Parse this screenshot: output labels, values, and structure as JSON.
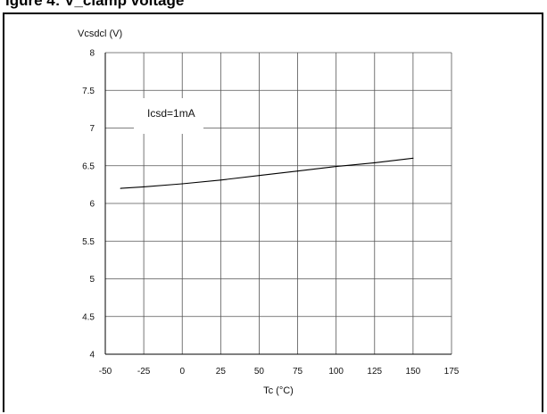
{
  "header": {
    "title": "igure 4: V_clamp voltage"
  },
  "chart_data": {
    "type": "line",
    "title": "",
    "xlabel": "Tc (°C)",
    "ylabel": "Vcsdcl (V)",
    "xlim": [
      -50,
      175
    ],
    "ylim": [
      4,
      8
    ],
    "xticks": [
      -50,
      -25,
      0,
      25,
      50,
      75,
      100,
      125,
      150,
      175
    ],
    "yticks": [
      4,
      4.5,
      5,
      5.5,
      6,
      6.5,
      7,
      7.5,
      8
    ],
    "xtick_labels": [
      "-50",
      "-25",
      "0",
      "25",
      "50",
      "75",
      "100",
      "125",
      "150",
      "175"
    ],
    "ytick_labels": [
      "4",
      "4.5",
      "5",
      "5.5",
      "6",
      "6.5",
      "7",
      "7.5",
      "8"
    ],
    "grid": true,
    "annotation": "Icsd=1mA",
    "series": [
      {
        "name": "",
        "x": [
          -40,
          -25,
          0,
          25,
          50,
          75,
          100,
          125,
          150
        ],
        "y": [
          6.2,
          6.22,
          6.26,
          6.31,
          6.37,
          6.43,
          6.49,
          6.54,
          6.6
        ]
      }
    ],
    "colors": {
      "line": "#000000",
      "grid": "#555555",
      "axis": "#000000"
    }
  }
}
